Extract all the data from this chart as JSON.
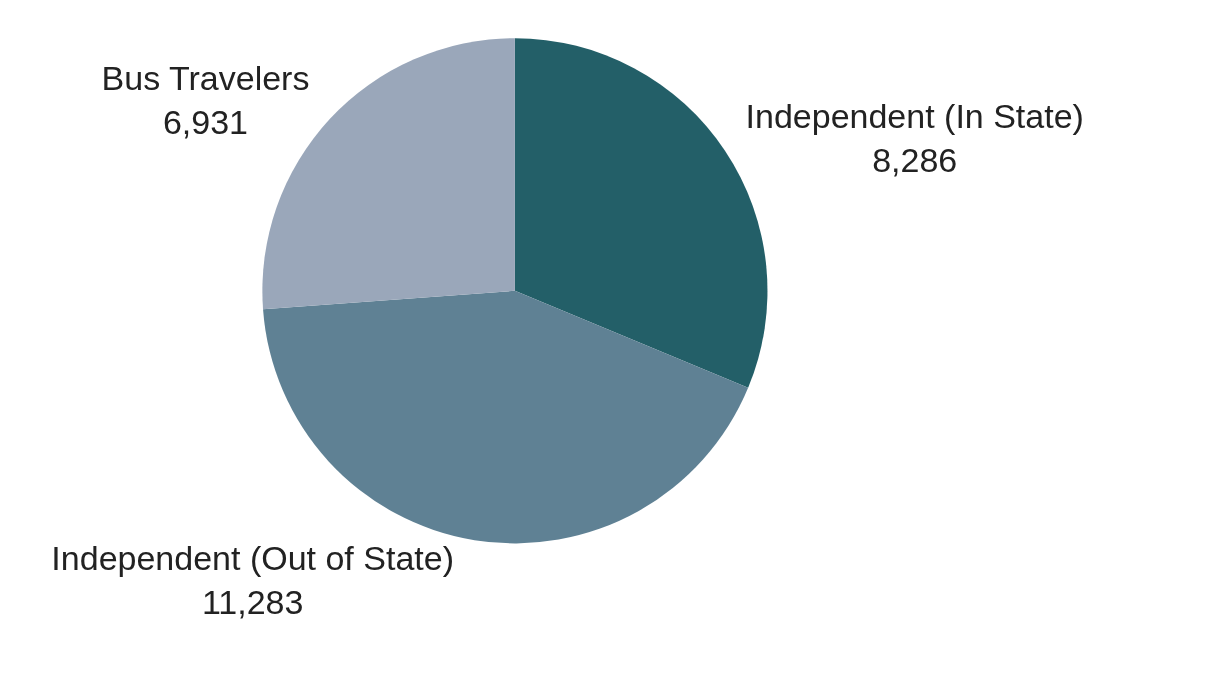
{
  "chart_data": {
    "type": "pie",
    "categories": [
      "Independent (In State)",
      "Independent (Out of State)",
      "Bus Travelers"
    ],
    "values": [
      8286,
      11283,
      6931
    ],
    "colors": [
      "#235f68",
      "#5f8194",
      "#9aa7ba"
    ],
    "value_labels": [
      "8,286",
      "11,283",
      "6,931"
    ],
    "legend": false
  }
}
